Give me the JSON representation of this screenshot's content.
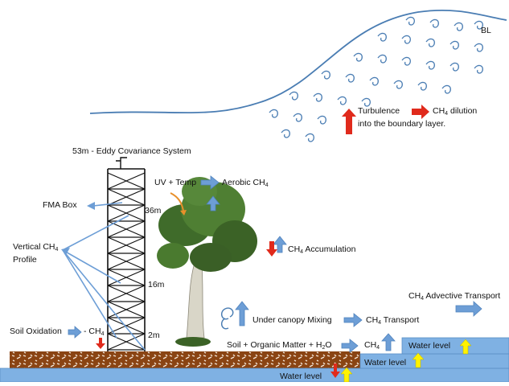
{
  "labels": {
    "bl": "BL",
    "turbulence_1": "Turbulence",
    "turbulence_2a": "CH",
    "turbulence_2b": " dilution",
    "turbulence_3": "into the boundary layer.",
    "eddy": "53m - Eddy Covariance System",
    "uv_temp": "UV + Temp",
    "aerobic_a": "Aerobic CH",
    "fma": "FMA Box",
    "h36": "36m",
    "h16": "16m",
    "h2": "2m",
    "vertical_1a": "Vertical CH",
    "vertical_2": "Profile",
    "accumulation_a": "CH",
    "accumulation_b": " Accumulation",
    "advective_a": "CH",
    "advective_b": " Advective Transport",
    "mixing": "Under canopy Mixing",
    "transport_a": "CH",
    "transport_b": " Transport",
    "soil_oxidation_a": "Soil Oxidation",
    "soil_oxidation_b": "- CH",
    "soil_organic_a": "Soil + Organic Matter + H",
    "soil_organic_b": "O",
    "soil_ch4": "CH",
    "water_level_1": "Water level",
    "water_level_2": "Water level",
    "water_level_3": "Water level",
    "sub4": "4",
    "sub2": "2"
  },
  "colors": {
    "arrow_blue": "#6d9ed6",
    "arrow_red": "#e02a1c",
    "arrow_yellow": "#fff200",
    "water": "#7fb1e3",
    "soil": "#8a4413",
    "tree_leaf": "#3f6b2a",
    "curve": "#4a7db3"
  }
}
